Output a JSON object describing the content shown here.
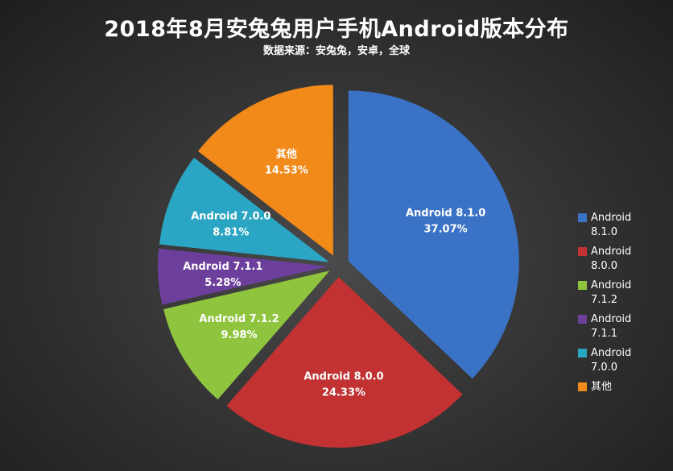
{
  "title": "2018年8月安兔兔用户手机Android版本分布",
  "subtitle": "数据来源：安兔兔，安卓，全球",
  "chart_data": {
    "type": "pie",
    "title": "2018年8月安兔兔用户手机Android版本分布",
    "subtitle": "数据来源：安兔兔，安卓，全球",
    "legend_position": "right",
    "slices": [
      {
        "label": "Android 8.1.0",
        "value": 37.07,
        "pct_label": "37.07%",
        "color": "#3a72c6"
      },
      {
        "label": "Android 8.0.0",
        "value": 24.33,
        "pct_label": "24.33%",
        "color": "#c23232"
      },
      {
        "label": "Android 7.1.2",
        "value": 9.98,
        "pct_label": "9.98%",
        "color": "#8fc43e"
      },
      {
        "label": "Android 7.1.1",
        "value": 5.28,
        "pct_label": "5.28%",
        "color": "#6c3f9c"
      },
      {
        "label": "Android 7.0.0",
        "value": 8.81,
        "pct_label": "8.81%",
        "color": "#2aa6c4"
      },
      {
        "label": "其他",
        "value": 14.53,
        "pct_label": "14.53%",
        "color": "#f28a1a"
      }
    ]
  }
}
